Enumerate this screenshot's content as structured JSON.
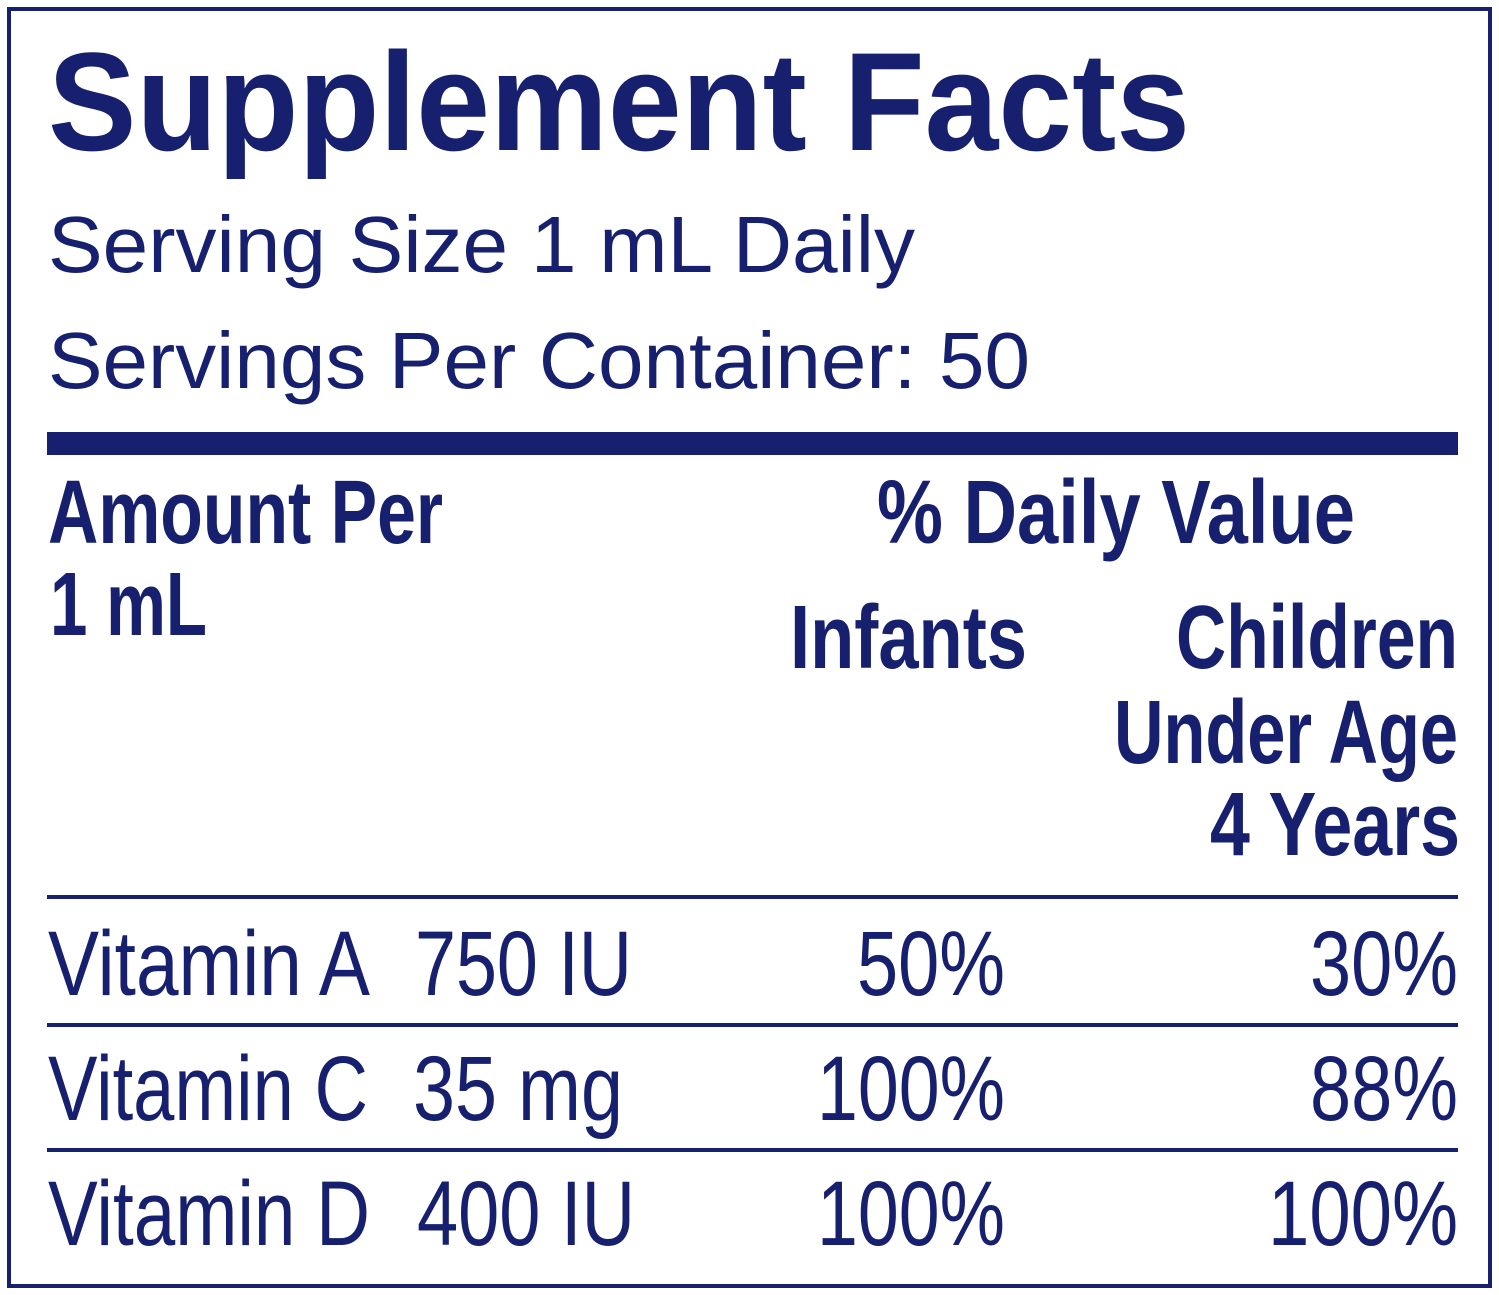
{
  "title": "Supplement Facts",
  "serving_size": "Serving Size 1 mL Daily",
  "servings_per_container": "Servings Per Container: 50",
  "table": {
    "header": {
      "amount": [
        "Amount Per",
        "1 mL"
      ],
      "daily_value": "% Daily Value",
      "infants": "Infants",
      "children": [
        "Children",
        "Under Age",
        "4 Years"
      ]
    },
    "rows": [
      [
        "Vitamin A",
        "750 IU",
        "50%",
        "30%"
      ],
      [
        "Vitamin C",
        "35 mg",
        "100%",
        "88%"
      ],
      [
        "Vitamin D",
        "400 IU",
        "100%",
        "100%"
      ]
    ]
  }
}
